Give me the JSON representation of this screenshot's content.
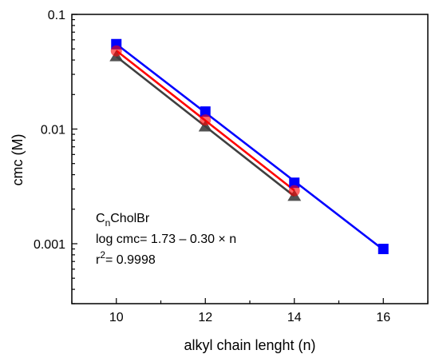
{
  "chart_data": {
    "type": "scatter",
    "xlabel": "alkyl chain lenght (n)",
    "ylabel": "cmc (M)",
    "xlim": [
      9,
      17
    ],
    "ylim": [
      0.0003,
      0.1
    ],
    "yscale": "log",
    "x_ticks": [
      10,
      12,
      14,
      16
    ],
    "x_tick_labels": [
      "10",
      "12",
      "14",
      "16"
    ],
    "y_ticks": [
      0.001,
      0.01,
      0.1
    ],
    "y_tick_labels": [
      "0.001",
      "0.01",
      "0.1"
    ],
    "grid": false,
    "legend": "none",
    "series": [
      {
        "marker": "square",
        "color": "#0000ff",
        "x": [
          10,
          12,
          14,
          16
        ],
        "y": [
          0.055,
          0.0142,
          0.0034,
          0.0009
        ],
        "fit_line": true
      },
      {
        "marker": "circle",
        "color": "#ff0000",
        "x": [
          10,
          12,
          14
        ],
        "y": [
          0.048,
          0.012,
          0.0029
        ],
        "fit_line": true
      },
      {
        "marker": "triangle",
        "color": "#3f3f3f",
        "x": [
          10,
          12,
          14
        ],
        "y": [
          0.043,
          0.0105,
          0.0026
        ],
        "fit_line": true
      }
    ],
    "annotation": {
      "compound_main": "C",
      "compound_sub": "n",
      "compound_rest": "CholBr",
      "equation": "log cmc= 1.73 – 0.30 × n",
      "r2_prefix": "r",
      "r2_sup": "2",
      "r2_value": "= 0.9998"
    }
  }
}
